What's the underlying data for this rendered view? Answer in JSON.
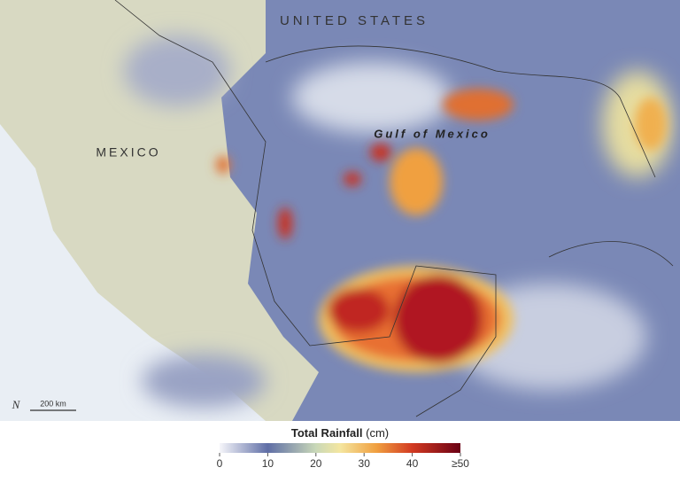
{
  "map": {
    "labels": [
      {
        "text": "UNITED STATES"
      },
      {
        "text": "MEXICO"
      },
      {
        "text": "Gulf of Mexico"
      }
    ],
    "compass": "N",
    "scale_bar": "200 km"
  },
  "legend": {
    "title": "Total Rainfall",
    "unit": "(cm)",
    "range": [
      0,
      50
    ],
    "ticks": [
      0,
      10,
      20,
      30,
      40,
      {
        "value": 50,
        "label": "≥50"
      }
    ]
  }
}
